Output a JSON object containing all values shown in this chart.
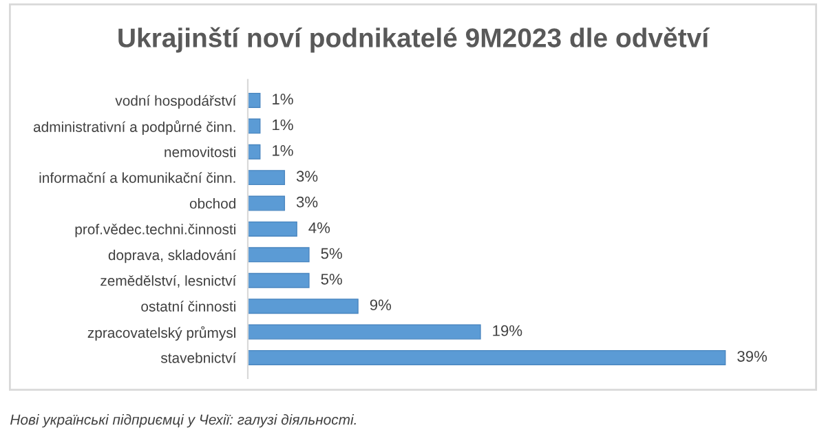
{
  "chart_data": {
    "type": "bar",
    "orientation": "horizontal",
    "title": "Ukrajinští noví podnikatelé 9M2023 dle odvětví",
    "categories": [
      "vodní hospodářství",
      "administrativní a podpůrné činn.",
      "nemovitosti",
      "informační a komunikační činn.",
      "obchod",
      "prof.vědec.techni.činnosti",
      "doprava, skladování",
      "zemědělství, lesnictví",
      "ostatní činnosti",
      "zpracovatelský průmysl",
      "stavebnictví"
    ],
    "values": [
      1,
      1,
      1,
      3,
      3,
      4,
      5,
      5,
      9,
      19,
      39
    ],
    "value_labels": [
      "1%",
      "1%",
      "1%",
      "3%",
      "3%",
      "4%",
      "5%",
      "5%",
      "9%",
      "19%",
      "39%"
    ],
    "color": "#5b9bd5",
    "grid": false,
    "legend": false,
    "tick_labels": "y",
    "annotations": [
      "Нові українські підприємці у Чехії: галузі діяльності."
    ]
  }
}
